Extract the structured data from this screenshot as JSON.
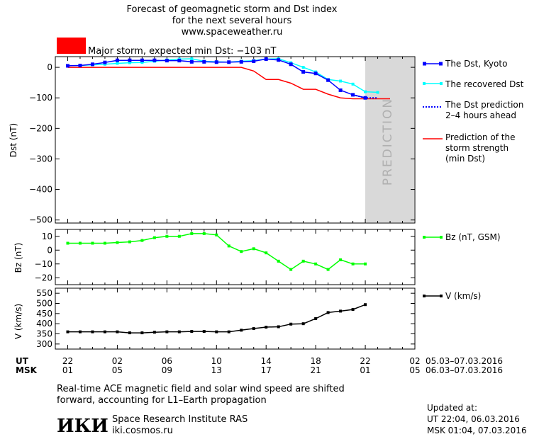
{
  "header": {
    "title_line1": "Forecast of geomagnetic storm and Dst index",
    "title_line2": "for the next several hours",
    "title_line3": "www.spaceweather.ru",
    "storm_color": "#ff0000",
    "storm_text": "Major storm, expected min Dst: −103 nT"
  },
  "prediction_label": "PREDICTION",
  "legend": {
    "dst_kyoto": "The Dst, Kyoto",
    "recovered": "The recovered Dst",
    "prediction_1": "The Dst prediction",
    "prediction_2": "2–4 hours ahead",
    "strength_1": "Prediction of the",
    "strength_2": "storm strength",
    "strength_3": "(min Dst)",
    "bz": "Bz (nT, GSM)",
    "v": "V (km/s)"
  },
  "time_axis": {
    "ut_label": "UT",
    "msk_label": "MSK",
    "ut_ticks": [
      "22",
      "02",
      "06",
      "10",
      "14",
      "18",
      "22",
      "02"
    ],
    "msk_ticks": [
      "01",
      "05",
      "09",
      "13",
      "17",
      "21",
      "01",
      "05"
    ],
    "ut_range": "05.03–07.03.2016",
    "msk_range": "06.03–07.03.2016"
  },
  "footer": {
    "note_line1": "Real-time ACE magnetic field and solar wind speed are shifted",
    "note_line2": "forward, accounting for L1–Earth propagation",
    "logo_text": "ИКИ",
    "institute": "Space Research Institute RAS",
    "site": "iki.cosmos.ru",
    "updated_label": "Updated at:",
    "updated_ut": "UT   22:04, 06.03.2016",
    "updated_msk": "MSK 01:04, 07.03.2016"
  },
  "colors": {
    "dst": "#0000ff",
    "recovered": "#00ffff",
    "prediction": "#0000ff",
    "strength": "#ff0000",
    "bz": "#00ff00",
    "v": "#000000",
    "prediction_zone": "#d9d9d9"
  },
  "chart_data": [
    {
      "type": "line",
      "ylabel": "Dst (nT)",
      "ylim": [
        -510,
        35
      ],
      "yticks": [
        0,
        -100,
        -200,
        -300,
        -400,
        -500
      ],
      "xlim_hours": [
        21,
        25
      ],
      "prediction_zone_hours": [
        21.1,
        24.9
      ],
      "series": [
        {
          "name": "The Dst, Kyoto",
          "x": [
            22,
            23,
            24,
            25,
            26,
            27,
            28,
            29,
            30,
            31,
            32,
            33,
            34,
            35,
            36,
            37,
            38,
            39,
            40,
            41,
            42,
            43,
            44,
            45,
            46
          ],
          "values": [
            5,
            6,
            10,
            16,
            23,
            23,
            23,
            23,
            22,
            22,
            18,
            18,
            17,
            17,
            18,
            20,
            27,
            24,
            10,
            -15,
            -20,
            -42,
            -75,
            -90,
            -100
          ]
        },
        {
          "name": "The recovered Dst",
          "x": [
            22,
            23,
            24,
            25,
            26,
            27,
            28,
            29,
            30,
            31,
            32,
            33,
            34,
            35,
            36,
            37,
            38,
            39,
            40,
            41,
            42,
            43,
            44,
            45,
            46,
            47
          ],
          "values": [
            5,
            6,
            8,
            10,
            13,
            15,
            16,
            20,
            24,
            27,
            28,
            20,
            18,
            17,
            20,
            22,
            27,
            28,
            15,
            0,
            -15,
            -40,
            -45,
            -55,
            -80,
            -82
          ]
        },
        {
          "name": "The Dst prediction 2–4 hours ahead",
          "x": [
            45,
            46,
            47
          ],
          "values": [
            -90,
            -100,
            -100
          ]
        },
        {
          "name": "Prediction of the storm strength (min Dst)",
          "x": [
            22,
            36,
            37,
            38,
            39,
            40,
            41,
            42,
            43,
            44,
            45,
            46,
            48
          ],
          "values": [
            0,
            0,
            -12,
            -40,
            -40,
            -52,
            -72,
            -72,
            -88,
            -100,
            -103,
            -103,
            -103
          ]
        }
      ]
    },
    {
      "type": "line",
      "ylabel": "Bz (nT)",
      "ylim": [
        -25,
        15
      ],
      "yticks": [
        10,
        0,
        -10,
        -20
      ],
      "series": [
        {
          "name": "Bz (nT, GSM)",
          "x": [
            22,
            23,
            24,
            25,
            26,
            27,
            28,
            29,
            30,
            31,
            32,
            33,
            34,
            35,
            36,
            37,
            38,
            39,
            40,
            41,
            42,
            43,
            44,
            45,
            46,
            47
          ],
          "values": [
            5,
            5,
            5,
            5,
            5.5,
            6,
            7,
            9,
            10,
            10,
            12,
            12,
            11,
            3,
            -1,
            1,
            -2,
            -8,
            -14,
            -8,
            -10,
            -14,
            -7,
            -10,
            -10,
            null
          ]
        }
      ]
    },
    {
      "type": "line",
      "ylabel": "V (km/s)",
      "ylim": [
        275,
        575
      ],
      "yticks": [
        550,
        500,
        450,
        400,
        350,
        300
      ],
      "series": [
        {
          "name": "V (km/s)",
          "x": [
            22,
            23,
            24,
            25,
            26,
            27,
            28,
            29,
            30,
            31,
            32,
            33,
            34,
            35,
            36,
            37,
            38,
            39,
            40,
            41,
            42,
            43,
            44,
            45,
            46
          ],
          "values": [
            360,
            360,
            360,
            360,
            360,
            355,
            355,
            358,
            360,
            360,
            362,
            362,
            360,
            360,
            368,
            376,
            383,
            385,
            398,
            400,
            425,
            455,
            462,
            470,
            494
          ]
        }
      ]
    }
  ]
}
